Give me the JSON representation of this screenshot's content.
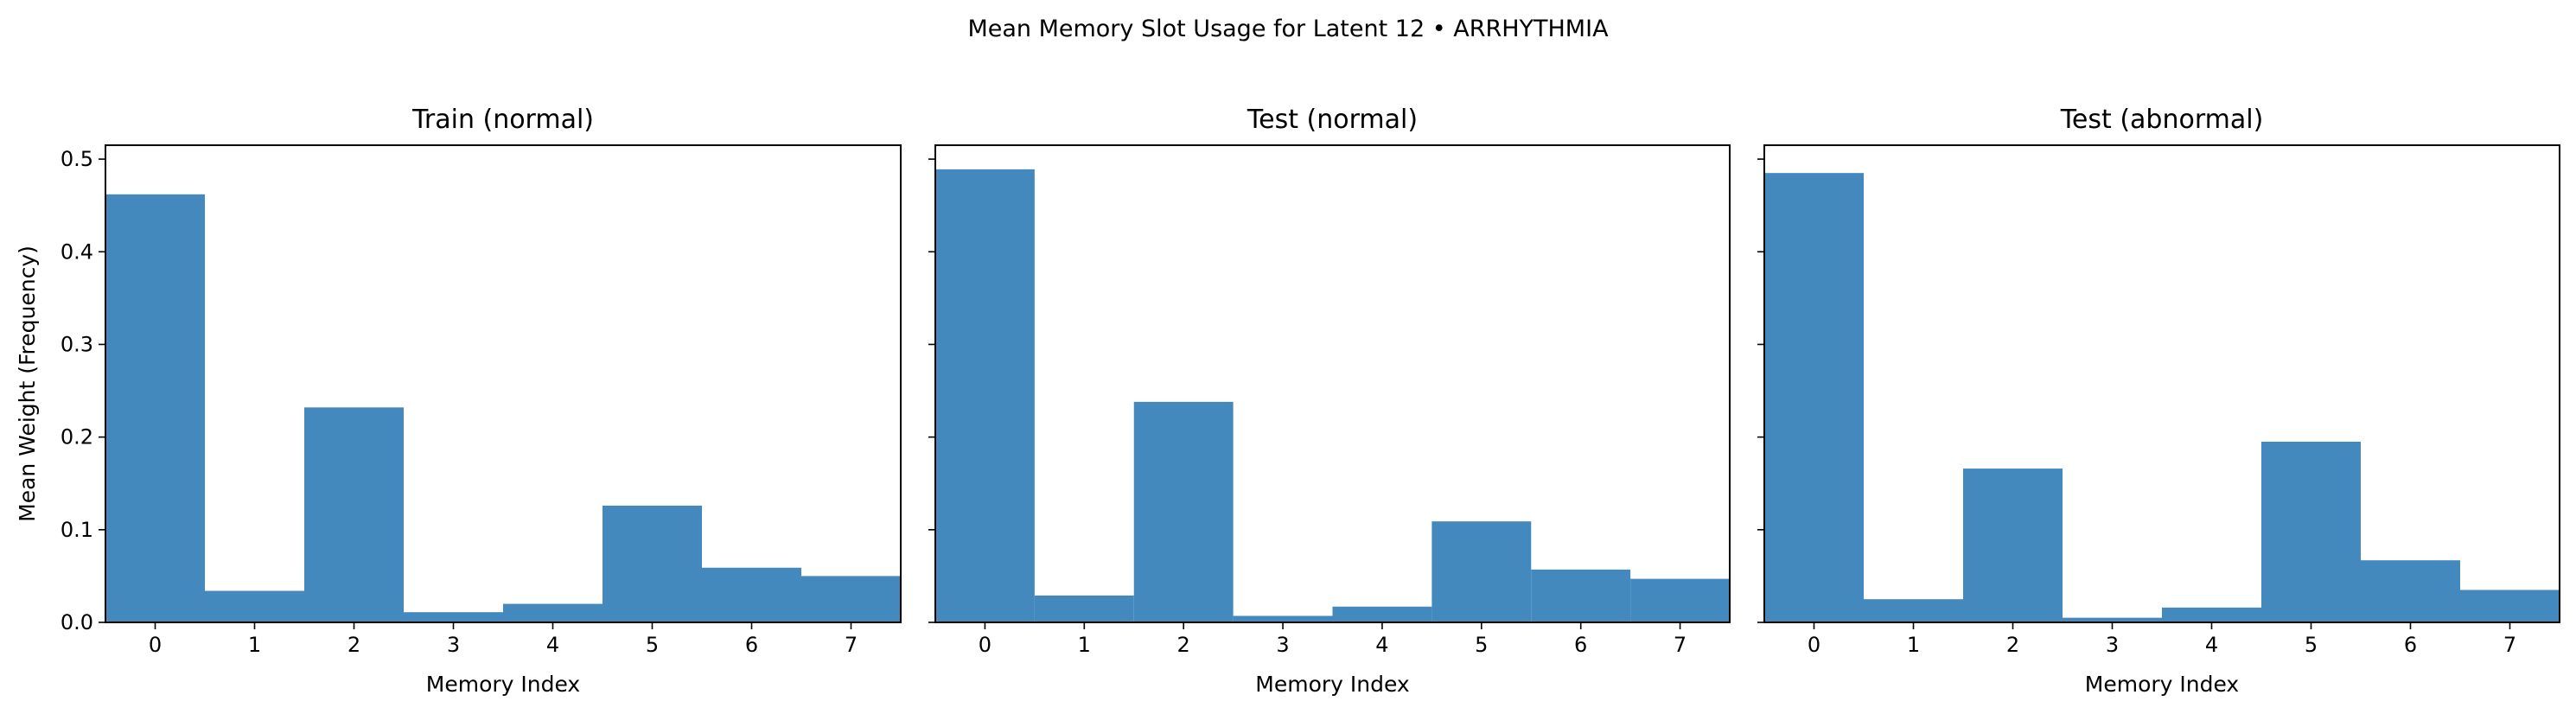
{
  "figure": {
    "suptitle": "Mean Memory Slot Usage for Latent 12 • ARRHYTHMIA",
    "bar_color": "#4389be",
    "axes_color": "#000000",
    "background": "#ffffff"
  },
  "chart_data": [
    {
      "type": "bar",
      "title": "Train (normal)",
      "xlabel": "Memory Index",
      "ylabel": "Mean Weight (Frequency)",
      "categories": [
        "0",
        "1",
        "2",
        "3",
        "4",
        "5",
        "6",
        "7"
      ],
      "values": [
        0.462,
        0.034,
        0.232,
        0.011,
        0.02,
        0.126,
        0.059,
        0.05
      ],
      "ylim": [
        0,
        0.515
      ],
      "yticks": [
        "0.0",
        "0.1",
        "0.2",
        "0.3",
        "0.4",
        "0.5"
      ],
      "grid": false,
      "legend": "none"
    },
    {
      "type": "bar",
      "title": "Test (normal)",
      "xlabel": "Memory Index",
      "ylabel": "",
      "categories": [
        "0",
        "1",
        "2",
        "3",
        "4",
        "5",
        "6",
        "7"
      ],
      "values": [
        0.489,
        0.029,
        0.238,
        0.007,
        0.017,
        0.109,
        0.057,
        0.047
      ],
      "ylim": [
        0,
        0.515
      ],
      "yticks": [],
      "grid": false,
      "legend": "none"
    },
    {
      "type": "bar",
      "title": "Test (abnormal)",
      "xlabel": "Memory Index",
      "ylabel": "",
      "categories": [
        "0",
        "1",
        "2",
        "3",
        "4",
        "5",
        "6",
        "7"
      ],
      "values": [
        0.485,
        0.025,
        0.166,
        0.005,
        0.016,
        0.195,
        0.067,
        0.035
      ],
      "ylim": [
        0,
        0.515
      ],
      "yticks": [],
      "grid": false,
      "legend": "none"
    }
  ]
}
